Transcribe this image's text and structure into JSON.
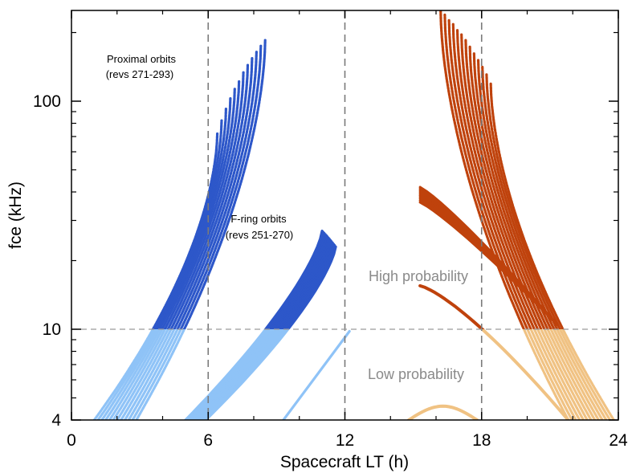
{
  "chart_data": {
    "type": "scatter",
    "title": "",
    "xlabel": "Spacecraft LT (h)",
    "ylabel": "fce (kHz)",
    "xlim": [
      0,
      24
    ],
    "ylim": [
      4,
      250
    ],
    "yscale": "log",
    "xticks": [
      0,
      6,
      12,
      18,
      24
    ],
    "xtick_labels": [
      "0",
      "6",
      "12",
      "18",
      "24"
    ],
    "yticks": [
      4,
      10,
      100
    ],
    "ytick_labels": [
      "4",
      "10",
      "100"
    ],
    "grid": false,
    "reference_lines": {
      "vertical_x": [
        6,
        12,
        18
      ],
      "horizontal_y": [
        10
      ]
    },
    "colors": {
      "blue_high": "#2d57c9",
      "blue_low": "#8fc3f7",
      "orange_high": "#bf420c",
      "orange_low": "#f0c283",
      "annotation_grey": "#8a8a8a",
      "dashed_line": "#7a7a7a"
    },
    "annotations": [
      {
        "key": "proximal",
        "lines": [
          "Proximal orbits",
          "(revs 271-293)"
        ]
      },
      {
        "key": "fring",
        "lines": [
          "F-ring orbits",
          "(revs 251-270)"
        ]
      },
      {
        "key": "high",
        "lines": [
          "High probability"
        ]
      },
      {
        "key": "low",
        "lines": [
          "Low probability"
        ]
      }
    ],
    "series": [
      {
        "group": "Proximal orbits, dawn",
        "x_range": [
          1.0,
          8.5
        ],
        "y_range": [
          4,
          185
        ],
        "track_count": 12
      },
      {
        "group": "Proximal orbits, dusk",
        "x_range": [
          16.2,
          23.8
        ],
        "y_range": [
          4,
          250
        ],
        "track_count": 13
      },
      {
        "group": "F-ring orbits, dawn",
        "x_range": [
          5.0,
          11.5
        ],
        "y_range": [
          4,
          27
        ]
      },
      {
        "group": "F-ring orbits, dusk",
        "x_range": [
          15.3,
          21.3
        ],
        "y_range": [
          10,
          42
        ]
      },
      {
        "group": "Inbound, low",
        "points": [
          [
            9.3,
            4
          ],
          [
            12.2,
            9.8
          ]
        ]
      },
      {
        "group": "Dusk branch",
        "points": [
          [
            15.3,
            15.5
          ],
          [
            18.0,
            10.5
          ],
          [
            21.8,
            4
          ]
        ]
      },
      {
        "group": "Midnight arc",
        "points": [
          [
            14.8,
            4
          ],
          [
            16.4,
            4.6
          ],
          [
            17.8,
            4
          ]
        ]
      }
    ]
  }
}
